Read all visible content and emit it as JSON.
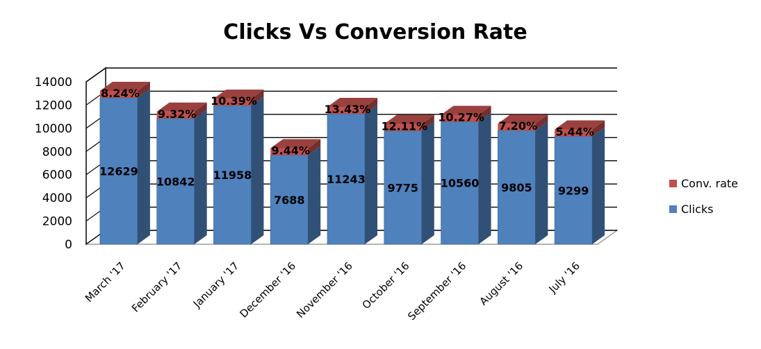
{
  "chart_data": {
    "type": "bar",
    "stacked": true,
    "three_d": true,
    "title": "Clicks Vs Conversion Rate",
    "xlabel": "",
    "ylabel": "",
    "categories": [
      "March '17",
      "February '17",
      "January '17",
      "December '16",
      "November '16",
      "October '16",
      "September '16",
      "August '16",
      "July '16"
    ],
    "ylim": [
      0,
      14000
    ],
    "yticks": [
      0,
      2000,
      4000,
      6000,
      8000,
      10000,
      12000,
      14000
    ],
    "grid": true,
    "legend_position": "right",
    "series": [
      {
        "name": "Clicks",
        "color": "#4F81BD",
        "values": [
          12629,
          10842,
          11958,
          7688,
          11243,
          9775,
          10560,
          9805,
          9299
        ],
        "labels": [
          "12629",
          "10842",
          "11958",
          "7688",
          "11243",
          "9775",
          "10560",
          "9805",
          "9299"
        ]
      },
      {
        "name": "Conv. rate",
        "color": "#C0504D",
        "values": [
          8.24,
          9.32,
          10.39,
          9.44,
          13.43,
          12.11,
          10.27,
          7.2,
          5.44
        ],
        "labels": [
          "8.24%",
          "9.32%",
          "10.39%",
          "9.44%",
          "13.43%",
          "12.11%",
          "10.27%",
          "7.20%",
          "5.44%"
        ]
      }
    ],
    "legend": [
      "Conv. rate",
      "Clicks"
    ]
  }
}
